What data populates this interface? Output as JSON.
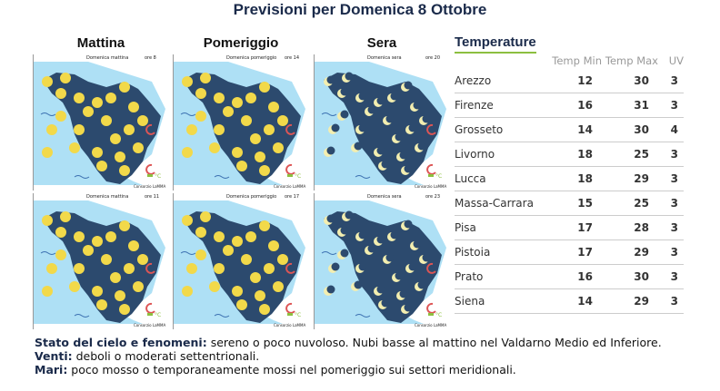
{
  "title": "Previsioni per Domenica 8 Ottobre",
  "columns": [
    "Mattina",
    "Pomeriggio",
    "Sera"
  ],
  "maps": [
    {
      "label": "Domenica mattina",
      "time": "ore 8",
      "icon": "sun",
      "credit": "Consorzio LaMMA"
    },
    {
      "label": "Domenica pomeriggio",
      "time": "ore 14",
      "icon": "sun",
      "credit": "Consorzio LaMMA"
    },
    {
      "label": "Domenica sera",
      "time": "ore 20",
      "icon": "moon",
      "credit": "Consorzio LaMMA"
    },
    {
      "label": "Domenica mattina",
      "time": "ore 11",
      "icon": "sun",
      "credit": "Consorzio LaMMA"
    },
    {
      "label": "Domenica pomeriggio",
      "time": "ore 17",
      "icon": "sun",
      "credit": "Consorzio LaMMA"
    },
    {
      "label": "Domenica sera",
      "time": "ore 23",
      "icon": "moon",
      "credit": "Consorzio LaMMA"
    }
  ],
  "colors": {
    "sea": "#aee0f5",
    "land": "#2c4a6e",
    "sun": "#f2d94a",
    "moon": "#f3eeb0",
    "accent": "#8cbf3f"
  },
  "temperature": {
    "title": "Temperature",
    "headers": [
      "",
      "Temp Min",
      "Temp Max",
      "UV"
    ],
    "rows": [
      [
        "Arezzo",
        "12",
        "30",
        "3"
      ],
      [
        "Firenze",
        "16",
        "31",
        "3"
      ],
      [
        "Grosseto",
        "14",
        "30",
        "4"
      ],
      [
        "Livorno",
        "18",
        "25",
        "3"
      ],
      [
        "Lucca",
        "18",
        "29",
        "3"
      ],
      [
        "Massa-Carrara",
        "15",
        "25",
        "3"
      ],
      [
        "Pisa",
        "17",
        "28",
        "3"
      ],
      [
        "Pistoia",
        "17",
        "29",
        "3"
      ],
      [
        "Prato",
        "16",
        "30",
        "3"
      ],
      [
        "Siena",
        "14",
        "29",
        "3"
      ]
    ]
  },
  "notes": [
    {
      "label": "Stato del cielo e fenomeni:",
      "text": " sereno o poco nuvoloso. Nubi basse al mattino nel Valdarno Medio ed Inferiore."
    },
    {
      "label": "Venti:",
      "text": " deboli o moderati settentrionali."
    },
    {
      "label": "Mari:",
      "text": " poco mosso o temporaneamente mossi nel pomeriggio sui settori meridionali."
    }
  ]
}
